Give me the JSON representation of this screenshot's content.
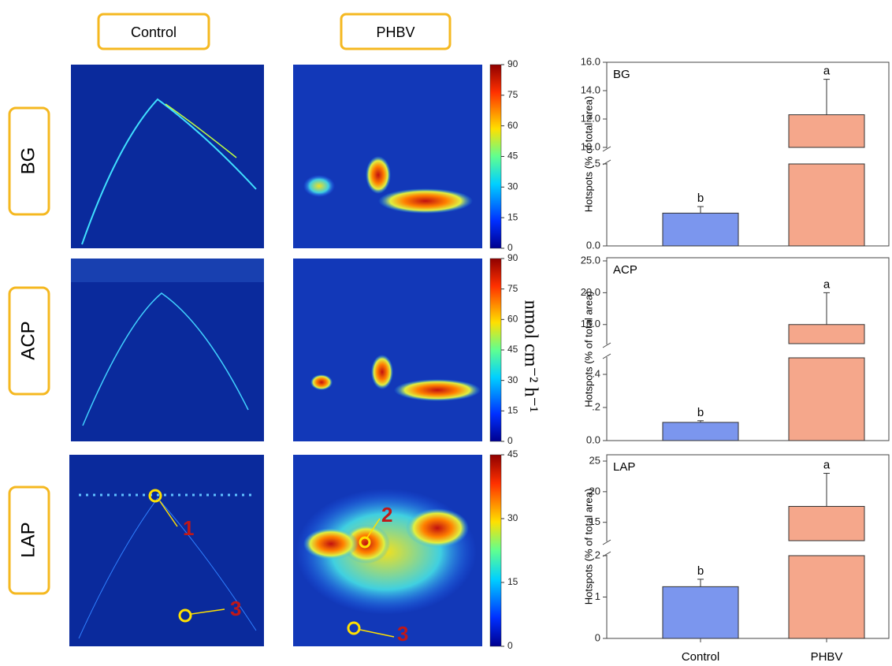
{
  "columns": [
    "Control",
    "PHBV"
  ],
  "rows": [
    "BG",
    "ACP",
    "LAP"
  ],
  "colorbars": [
    {
      "lim": [
        0,
        90
      ],
      "ticks": [
        0,
        15,
        30,
        45,
        60,
        75,
        90
      ]
    },
    {
      "lim": [
        0,
        90
      ],
      "ticks": [
        0,
        15,
        30,
        45,
        60,
        75,
        90
      ]
    },
    {
      "lim": [
        0,
        45
      ],
      "ticks": [
        0,
        15,
        30,
        45
      ]
    }
  ],
  "colorbar_unit": "nmol cm⁻² h⁻¹",
  "markers": [
    "1",
    "2",
    "3",
    "3"
  ],
  "chart_data": [
    {
      "type": "bar",
      "title": "BG",
      "ylabel": "Hotspots (% of total area)",
      "values": [
        0.2,
        12.3
      ],
      "errors": [
        0.04,
        2.5
      ],
      "letters": [
        "b",
        "a"
      ],
      "colors": [
        "#7b96ee",
        "#f5a78b"
      ],
      "segments": [
        {
          "ylim": [
            0,
            0.5
          ],
          "yticks": [
            {
              "value": 0,
              "label": "0.0"
            },
            {
              "value": 0.5,
              "label": ".5"
            }
          ]
        },
        {
          "ylim": [
            10,
            16
          ],
          "yticks": [
            {
              "value": 10,
              "label": "10.0"
            },
            {
              "value": 12,
              "label": "12.0"
            },
            {
              "value": 14,
              "label": "14.0"
            },
            {
              "value": 16,
              "label": "16.0"
            }
          ]
        }
      ]
    },
    {
      "type": "bar",
      "title": "ACP",
      "ylabel": "Hotspots (% of total area)",
      "values": [
        0.11,
        15
      ],
      "errors": [
        0.01,
        5
      ],
      "letters": [
        "b",
        "a"
      ],
      "colors": [
        "#7b96ee",
        "#f5a78b"
      ],
      "segments": [
        {
          "ylim": [
            0,
            0.5
          ],
          "yticks": [
            {
              "value": 0,
              "label": "0.0"
            },
            {
              "value": 0.2,
              "label": ".2"
            },
            {
              "value": 0.4,
              "label": ".4"
            }
          ]
        },
        {
          "ylim": [
            12,
            25
          ],
          "yticks": [
            {
              "value": 15,
              "label": "15.0"
            },
            {
              "value": 20,
              "label": "20.0"
            },
            {
              "value": 25,
              "label": "25.0"
            }
          ]
        }
      ]
    },
    {
      "type": "bar",
      "title": "LAP",
      "ylabel": "Hotspots (% of total area)",
      "categories": [
        "Control",
        "PHBV"
      ],
      "values": [
        1.25,
        17.6
      ],
      "errors": [
        0.18,
        5.4
      ],
      "letters": [
        "b",
        "a"
      ],
      "colors": [
        "#7b96ee",
        "#f5a78b"
      ],
      "segments": [
        {
          "ylim": [
            0,
            2
          ],
          "yticks": [
            0,
            1,
            2
          ]
        },
        {
          "ylim": [
            12,
            25
          ],
          "yticks": [
            15,
            20,
            25
          ]
        }
      ]
    }
  ]
}
